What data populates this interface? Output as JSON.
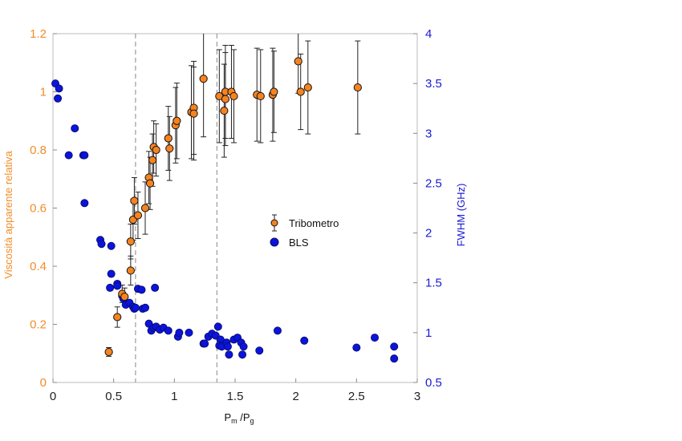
{
  "colors": {
    "left_axis": "#f28c28",
    "right_axis": "#1a1ad6",
    "tribometro_fill": "#f5831f",
    "bls_fill": "#0a14dc",
    "errorbar": "#222222",
    "frame": "#bbbbbb",
    "vline": "#888888"
  },
  "chart_data": {
    "type": "scatter",
    "xlabel_main": "P",
    "xlabel_sub1": "m",
    "xlabel_mid": " /P",
    "xlabel_sub2": "g",
    "ylabel_left": "Viscosità apparente relativa",
    "ylabel_right": "FWHM (GHz)",
    "xlim": [
      0,
      3
    ],
    "ylim_left": [
      0,
      1.2
    ],
    "ylim_right": [
      0.5,
      4
    ],
    "x_ticks": [
      "0",
      "0.5",
      "1",
      "1.5",
      "2",
      "2.5",
      "3"
    ],
    "y_left_ticks": [
      "0",
      "0.2",
      "0.4",
      "0.6",
      "0.8",
      "1",
      "1.2"
    ],
    "y_right_ticks": [
      "0.5",
      "1",
      "1.5",
      "2",
      "2.5",
      "3",
      "3.5",
      "4"
    ],
    "vlines_x": [
      0.68,
      1.35
    ],
    "legend": {
      "position": "center-right",
      "entries": [
        "Tribometro",
        "BLS"
      ]
    },
    "series": [
      {
        "name": "Tribometro",
        "axis": "left",
        "marker": "circle-errorbar",
        "points": [
          {
            "x": 0.46,
            "y": 0.105,
            "err": 0.015
          },
          {
            "x": 0.53,
            "y": 0.225,
            "err": 0.035
          },
          {
            "x": 0.57,
            "y": 0.305,
            "err": 0.03
          },
          {
            "x": 0.59,
            "y": 0.295,
            "err": 0.03
          },
          {
            "x": 0.64,
            "y": 0.385,
            "err": 0.05
          },
          {
            "x": 0.64,
            "y": 0.485,
            "err": 0.06
          },
          {
            "x": 0.66,
            "y": 0.56,
            "err": 0.07
          },
          {
            "x": 0.67,
            "y": 0.625,
            "err": 0.08
          },
          {
            "x": 0.7,
            "y": 0.575,
            "err": 0.08
          },
          {
            "x": 0.76,
            "y": 0.6,
            "err": 0.09
          },
          {
            "x": 0.79,
            "y": 0.705,
            "err": 0.09
          },
          {
            "x": 0.8,
            "y": 0.685,
            "err": 0.09
          },
          {
            "x": 0.82,
            "y": 0.765,
            "err": 0.09
          },
          {
            "x": 0.83,
            "y": 0.81,
            "err": 0.09
          },
          {
            "x": 0.85,
            "y": 0.8,
            "err": 0.09
          },
          {
            "x": 0.95,
            "y": 0.84,
            "err": 0.11
          },
          {
            "x": 0.96,
            "y": 0.805,
            "err": 0.11
          },
          {
            "x": 1.01,
            "y": 0.885,
            "err": 0.13
          },
          {
            "x": 1.02,
            "y": 0.9,
            "err": 0.13
          },
          {
            "x": 1.14,
            "y": 0.93,
            "err": 0.16
          },
          {
            "x": 1.16,
            "y": 0.945,
            "err": 0.16
          },
          {
            "x": 1.16,
            "y": 0.925,
            "err": 0.16
          },
          {
            "x": 1.24,
            "y": 1.045,
            "err": 0.2
          },
          {
            "x": 1.37,
            "y": 0.985,
            "err": 0.16
          },
          {
            "x": 1.41,
            "y": 0.935,
            "err": 0.16
          },
          {
            "x": 1.42,
            "y": 0.975,
            "err": 0.16
          },
          {
            "x": 1.42,
            "y": 1.0,
            "err": 0.16
          },
          {
            "x": 1.47,
            "y": 1.0,
            "err": 0.16
          },
          {
            "x": 1.49,
            "y": 0.985,
            "err": 0.16
          },
          {
            "x": 1.68,
            "y": 0.99,
            "err": 0.16
          },
          {
            "x": 1.71,
            "y": 0.985,
            "err": 0.16
          },
          {
            "x": 1.81,
            "y": 0.99,
            "err": 0.16
          },
          {
            "x": 1.82,
            "y": 1.0,
            "err": 0.14
          },
          {
            "x": 2.02,
            "y": 1.105,
            "err": 0.11
          },
          {
            "x": 2.04,
            "y": 1.0,
            "err": 0.13
          },
          {
            "x": 2.1,
            "y": 1.015,
            "err": 0.16
          },
          {
            "x": 2.51,
            "y": 1.015,
            "err": 0.16
          }
        ]
      },
      {
        "name": "BLS",
        "axis": "right",
        "marker": "circle",
        "points": [
          {
            "x": 0.02,
            "y": 3.5
          },
          {
            "x": 0.05,
            "y": 3.45
          },
          {
            "x": 0.04,
            "y": 3.35
          },
          {
            "x": 0.18,
            "y": 3.05
          },
          {
            "x": 0.13,
            "y": 2.78
          },
          {
            "x": 0.25,
            "y": 2.78
          },
          {
            "x": 0.26,
            "y": 2.78
          },
          {
            "x": 0.26,
            "y": 2.3
          },
          {
            "x": 0.39,
            "y": 1.93
          },
          {
            "x": 0.4,
            "y": 1.89
          },
          {
            "x": 0.48,
            "y": 1.87
          },
          {
            "x": 0.48,
            "y": 1.59
          },
          {
            "x": 0.47,
            "y": 1.45
          },
          {
            "x": 0.53,
            "y": 1.49
          },
          {
            "x": 0.53,
            "y": 1.47
          },
          {
            "x": 0.57,
            "y": 1.37
          },
          {
            "x": 0.58,
            "y": 1.34
          },
          {
            "x": 0.6,
            "y": 1.28
          },
          {
            "x": 0.63,
            "y": 1.3
          },
          {
            "x": 0.66,
            "y": 1.26
          },
          {
            "x": 0.67,
            "y": 1.24
          },
          {
            "x": 0.68,
            "y": 1.25
          },
          {
            "x": 0.7,
            "y": 1.44
          },
          {
            "x": 0.73,
            "y": 1.43
          },
          {
            "x": 0.74,
            "y": 1.24
          },
          {
            "x": 0.76,
            "y": 1.25
          },
          {
            "x": 0.84,
            "y": 1.45
          },
          {
            "x": 0.79,
            "y": 1.09
          },
          {
            "x": 0.81,
            "y": 1.02
          },
          {
            "x": 0.83,
            "y": 1.05
          },
          {
            "x": 0.85,
            "y": 1.06
          },
          {
            "x": 0.88,
            "y": 1.03
          },
          {
            "x": 0.91,
            "y": 1.05
          },
          {
            "x": 0.95,
            "y": 1.02
          },
          {
            "x": 1.03,
            "y": 0.96
          },
          {
            "x": 1.04,
            "y": 1.0
          },
          {
            "x": 1.12,
            "y": 1.0
          },
          {
            "x": 1.24,
            "y": 0.89
          },
          {
            "x": 1.25,
            "y": 0.89
          },
          {
            "x": 1.28,
            "y": 0.96
          },
          {
            "x": 1.31,
            "y": 0.99
          },
          {
            "x": 1.34,
            "y": 0.97
          },
          {
            "x": 1.36,
            "y": 1.06
          },
          {
            "x": 1.38,
            "y": 0.93
          },
          {
            "x": 1.37,
            "y": 0.87
          },
          {
            "x": 1.39,
            "y": 0.86
          },
          {
            "x": 1.43,
            "y": 0.9
          },
          {
            "x": 1.44,
            "y": 0.86
          },
          {
            "x": 1.45,
            "y": 0.78
          },
          {
            "x": 1.49,
            "y": 0.93
          },
          {
            "x": 1.52,
            "y": 0.95
          },
          {
            "x": 1.55,
            "y": 0.9
          },
          {
            "x": 1.56,
            "y": 0.78
          },
          {
            "x": 1.57,
            "y": 0.86
          },
          {
            "x": 1.7,
            "y": 0.82
          },
          {
            "x": 1.85,
            "y": 1.02
          },
          {
            "x": 2.07,
            "y": 0.92
          },
          {
            "x": 2.5,
            "y": 0.85
          },
          {
            "x": 2.65,
            "y": 0.95
          },
          {
            "x": 2.81,
            "y": 0.86
          },
          {
            "x": 2.81,
            "y": 0.74
          }
        ]
      }
    ]
  }
}
